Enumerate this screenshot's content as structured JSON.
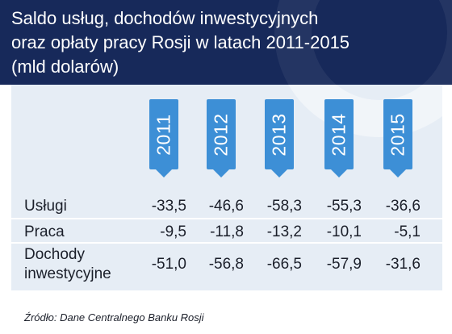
{
  "header": {
    "title_lines": [
      "Saldo usług, dochodów inwestycyjnych",
      "oraz opłaty pracy Rosji w latach 2011-2015",
      "(mld dolarów)"
    ]
  },
  "source": "Źródło: Dane Centralnego Banku Rosji",
  "colors": {
    "header_bg": "#17295a",
    "panel_bg": "#e6edf5",
    "year_tag": "#3d8fd6",
    "text": "#1b1f2a"
  },
  "chart_data": {
    "type": "table",
    "title": "Saldo usług, dochodów inwestycyjnych oraz opłaty pracy Rosji w latach 2011-2015 (mld dolarów)",
    "columns": [
      "2011",
      "2012",
      "2013",
      "2014",
      "2015"
    ],
    "rows": [
      {
        "label": "Usługi",
        "label_lines": [
          "Usługi"
        ],
        "values": [
          "-33,5",
          "-46,6",
          "-58,3",
          "-55,3",
          "-36,6"
        ]
      },
      {
        "label": "Praca",
        "label_lines": [
          "Praca"
        ],
        "values": [
          "-9,5",
          "-11,8",
          "-13,2",
          "-10,1",
          "-5,1"
        ]
      },
      {
        "label": "Dochody inwestycyjne",
        "label_lines": [
          "Dochody",
          "inwestycyjne"
        ],
        "values": [
          "-51,0",
          "-56,8",
          "-66,5",
          "-57,9",
          "-31,6"
        ]
      }
    ]
  }
}
